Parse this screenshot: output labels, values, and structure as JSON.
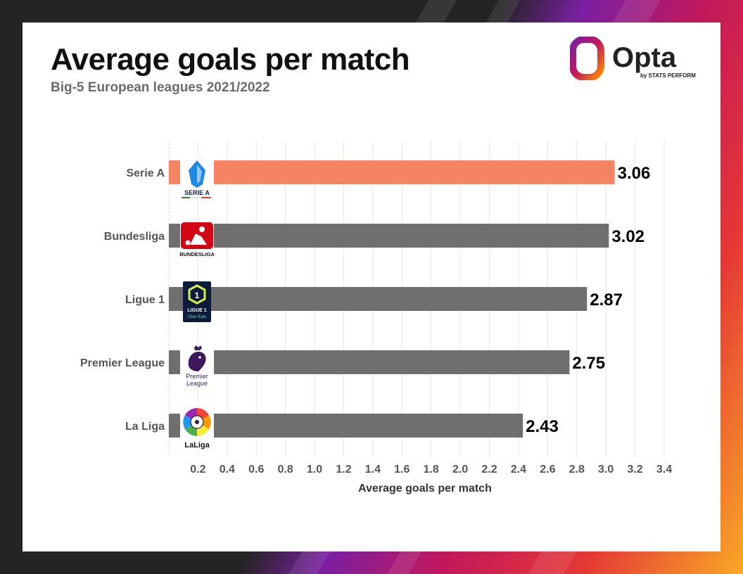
{
  "brand": {
    "name": "Opta",
    "tagline": "by STATS PERFORM",
    "colors": {
      "orange": "#ff8a00",
      "magenta": "#c2185b",
      "purple": "#7b1fa2"
    }
  },
  "chart_data": {
    "type": "bar",
    "orientation": "horizontal",
    "title": "Average goals per match",
    "subtitle": "Big-5 European leagues 2021/2022",
    "xlabel": "Average goals per match",
    "ylabel": "",
    "xlim": [
      0,
      3.4
    ],
    "xticks": [
      0.2,
      0.4,
      0.6,
      0.8,
      1.0,
      1.2,
      1.4,
      1.6,
      1.8,
      2.0,
      2.2,
      2.4,
      2.6,
      2.8,
      3.0,
      3.2,
      3.4
    ],
    "xtick_labels": [
      "0.2",
      "0.4",
      "0.6",
      "0.8",
      "1.0",
      "1.2",
      "1.4",
      "1.6",
      "1.8",
      "2.0",
      "2.2",
      "2.4",
      "2.6",
      "2.8",
      "3.0",
      "3.2",
      "3.4"
    ],
    "grid": "vertical",
    "categories": [
      "Serie A",
      "Bundesliga",
      "Ligue 1",
      "Premier League",
      "La Liga"
    ],
    "values": [
      3.06,
      3.02,
      2.87,
      2.75,
      2.43
    ],
    "value_labels": [
      "3.06",
      "3.02",
      "2.87",
      "2.75",
      "2.43"
    ],
    "highlight": "Serie A",
    "colors": {
      "highlight": "#f58462",
      "default": "#6f6f6f"
    },
    "league_logos": [
      {
        "league": "Serie A",
        "logo_text": "SERIE A",
        "icon": "serie-a-logo"
      },
      {
        "league": "Bundesliga",
        "logo_text": "BUNDESLIGA",
        "icon": "bundesliga-logo"
      },
      {
        "league": "Ligue 1",
        "logo_text": "LIGUE 1",
        "logo_subtext": "Uber Eats",
        "icon": "ligue-1-logo"
      },
      {
        "league": "Premier League",
        "logo_text": "Premier",
        "logo_subtext": "League",
        "icon": "premier-league-logo"
      },
      {
        "league": "La Liga",
        "logo_text": "LaLiga",
        "icon": "laliga-logo"
      }
    ]
  }
}
